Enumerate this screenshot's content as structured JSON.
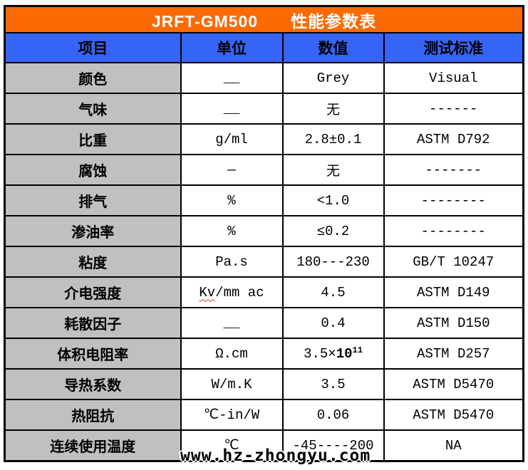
{
  "title": {
    "model": "JRFT-GM500",
    "name": "性能参数表"
  },
  "columns": {
    "item": "项目",
    "unit": "单位",
    "value": "数值",
    "standard": "测试标准"
  },
  "rows": [
    {
      "item": "颜色",
      "unit": "__",
      "value": "Grey",
      "standard": "Visual"
    },
    {
      "item": "气味",
      "unit": "__",
      "value": "无",
      "standard": "------"
    },
    {
      "item": "比重",
      "unit": "g/ml",
      "value": "2.8±0.1",
      "standard": "ASTM D792"
    },
    {
      "item": "腐蚀",
      "unit": "—",
      "value": "无",
      "standard": "-------"
    },
    {
      "item": "排气",
      "unit": "%",
      "value": "<1.0",
      "standard": "--------"
    },
    {
      "item": "渗油率",
      "unit": "%",
      "value": "≤0.2",
      "standard": "--------"
    },
    {
      "item": "粘度",
      "unit": "Pa.s",
      "value": "180---230",
      "standard": "GB/T 10247"
    },
    {
      "item": "介电强度",
      "unit_misspelled": "Kv",
      "unit_rest": "/mm ac",
      "value": "4.5",
      "standard": "ASTM D149"
    },
    {
      "item": "耗散因子",
      "unit": "__",
      "value": "0.4",
      "standard": "ASTM D150"
    },
    {
      "item": "体积电阻率",
      "unit": "Ω.cm",
      "value_base": "3.5×",
      "value_mantissa": "10",
      "value_exponent": "11",
      "standard": "ASTM D257"
    },
    {
      "item": "导热系数",
      "unit": "W/m.K",
      "value": "3.5",
      "standard": "ASTM D5470"
    },
    {
      "item": "热阻抗",
      "unit": "℃-in/W",
      "value": "0.06",
      "standard": "ASTM D5470"
    },
    {
      "item": "连续使用温度",
      "unit": "℃",
      "value": "-45----200",
      "standard": "NA"
    }
  ],
  "watermark": "www.hz-zhongyu.com",
  "colors": {
    "title_bar": "#fb6a04",
    "header_bar": "#3564f6",
    "item_column": "#c0c0c0",
    "border": "#000000",
    "title_text": "#ffffff",
    "squiggle": "#d83a2e"
  }
}
